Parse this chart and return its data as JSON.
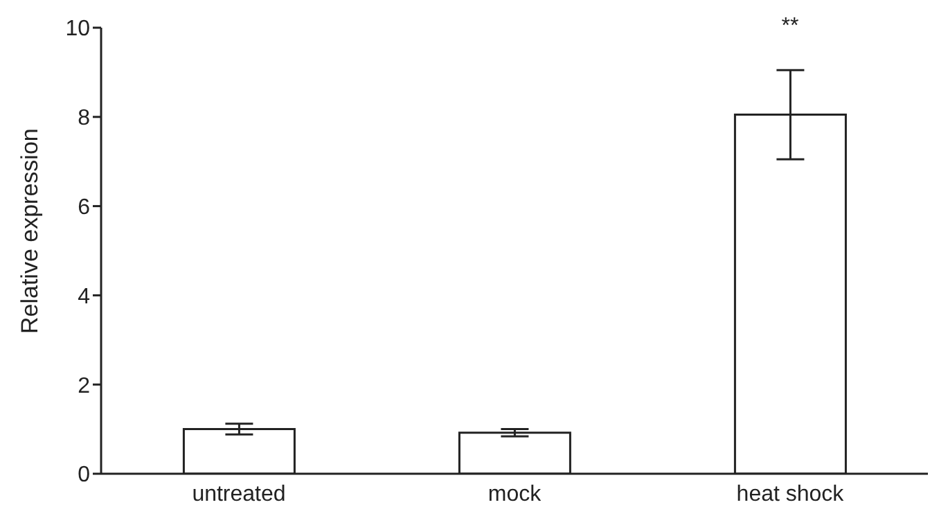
{
  "chart_data": {
    "type": "bar",
    "ylabel": "Relative expression",
    "categories": [
      "untreated",
      "mock",
      "heat shock"
    ],
    "values": [
      1.0,
      0.92,
      8.05
    ],
    "errors": [
      0.12,
      0.08,
      1.0
    ],
    "color": "#ffffff",
    "ylim": [
      0,
      10
    ],
    "yticks": [
      0,
      2,
      4,
      6,
      8,
      10
    ],
    "annotations": [
      "**"
    ]
  }
}
